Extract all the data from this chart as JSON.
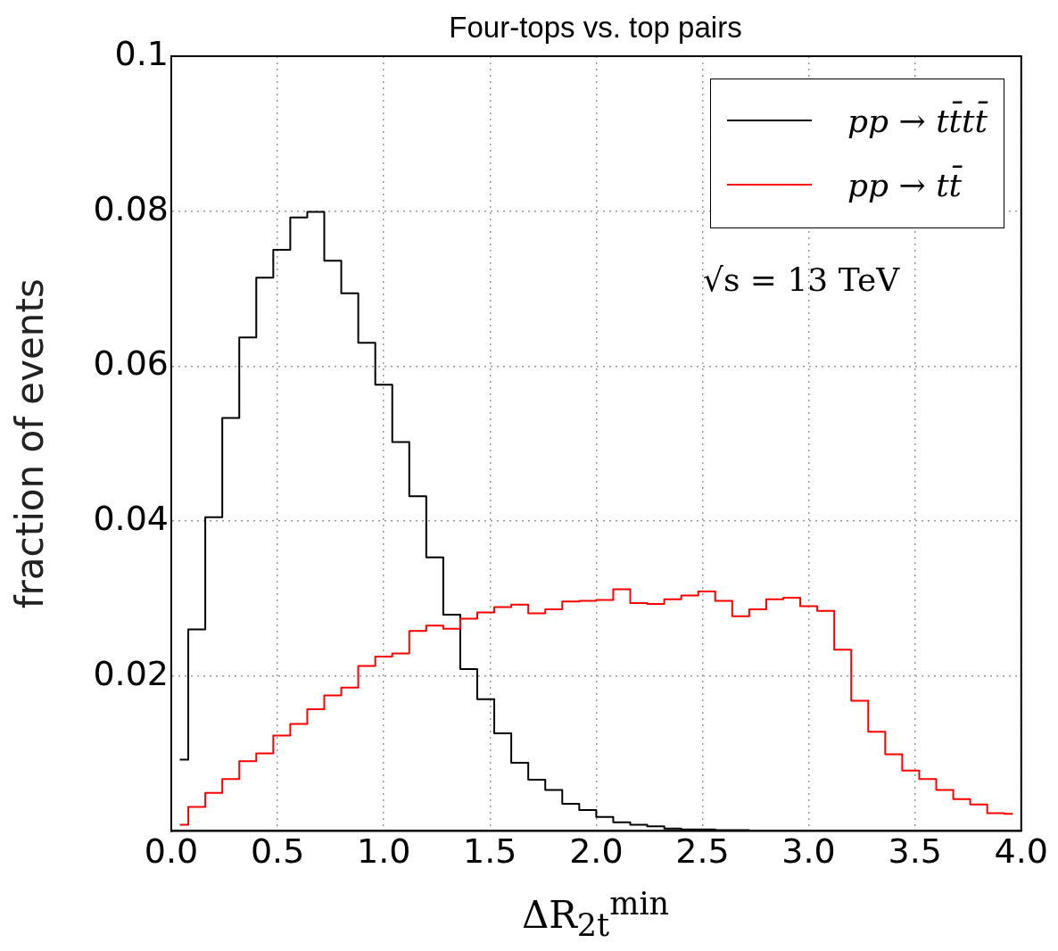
{
  "chart_data": {
    "type": "step",
    "title": "Four-tops vs. top pairs",
    "xlabel": "ΔR$_{2t}$$^{min}$",
    "ylabel": "fraction of events",
    "annotations": [
      "√s = 13 TeV"
    ],
    "x": [
      0.04,
      0.12,
      0.2,
      0.28,
      0.36,
      0.44,
      0.52,
      0.6,
      0.68,
      0.76,
      0.84,
      0.92,
      1,
      1.08,
      1.16,
      1.24,
      1.32,
      1.4,
      1.48,
      1.56,
      1.64,
      1.72,
      1.8,
      1.88,
      1.96,
      2.04,
      2.12,
      2.2,
      2.28,
      2.36,
      2.44,
      2.52,
      2.6,
      2.68,
      2.76,
      2.84,
      2.92,
      3,
      3.08,
      3.16,
      3.24,
      3.32,
      3.4,
      3.48,
      3.56,
      3.64,
      3.72,
      3.8,
      3.88,
      3.96
    ],
    "series": [
      {
        "name": "pp → tt̄tt̄",
        "color": "#000000",
        "values": [
          0.0092,
          0.026,
          0.0405,
          0.0533,
          0.0637,
          0.0714,
          0.075,
          0.0792,
          0.0799,
          0.0736,
          0.0694,
          0.063,
          0.0576,
          0.0502,
          0.0432,
          0.0353,
          0.0279,
          0.0209,
          0.017,
          0.0126,
          0.0088,
          0.0066,
          0.0053,
          0.0035,
          0.0027,
          0.0018,
          0.0011,
          0.0008,
          0.0006,
          0.0003,
          0.0002,
          0.0002,
          0.0001,
          0.0001,
          0,
          0,
          0,
          0,
          0,
          0,
          0,
          0,
          0,
          0,
          0,
          0,
          0,
          0,
          0,
          0
        ]
      },
      {
        "name": "pp → tt̄",
        "color": "#ff0000",
        "values": [
          0.0008,
          0.0031,
          0.0049,
          0.0067,
          0.009,
          0.01,
          0.0123,
          0.0138,
          0.0157,
          0.0175,
          0.0185,
          0.0213,
          0.0225,
          0.0229,
          0.0258,
          0.0265,
          0.0261,
          0.0274,
          0.0282,
          0.0289,
          0.0292,
          0.0281,
          0.0286,
          0.0296,
          0.0297,
          0.0298,
          0.0312,
          0.0294,
          0.0293,
          0.0299,
          0.0304,
          0.0309,
          0.0297,
          0.0277,
          0.0286,
          0.0299,
          0.0301,
          0.029,
          0.0284,
          0.0234,
          0.0168,
          0.0128,
          0.0099,
          0.0078,
          0.0067,
          0.0053,
          0.0041,
          0.0034,
          0.0023,
          0.0022
        ]
      }
    ],
    "xlim": [
      0,
      4
    ],
    "xticks": [
      {
        "value": 0,
        "label": "0.0"
      },
      {
        "value": 0.5,
        "label": "0.5"
      },
      {
        "value": 1,
        "label": "1.0"
      },
      {
        "value": 1.5,
        "label": "1.5"
      },
      {
        "value": 2,
        "label": "2.0"
      },
      {
        "value": 2.5,
        "label": "2.5"
      },
      {
        "value": 3,
        "label": "3.0"
      },
      {
        "value": 3.5,
        "label": "3.5"
      },
      {
        "value": 4,
        "label": "4.0"
      }
    ],
    "ylim": [
      0,
      0.1
    ],
    "yticks": [
      0.02,
      0.04,
      0.06,
      0.08,
      0.1
    ],
    "grid": true,
    "legend": "top right",
    "line_style": "solid",
    "marker": "none"
  }
}
